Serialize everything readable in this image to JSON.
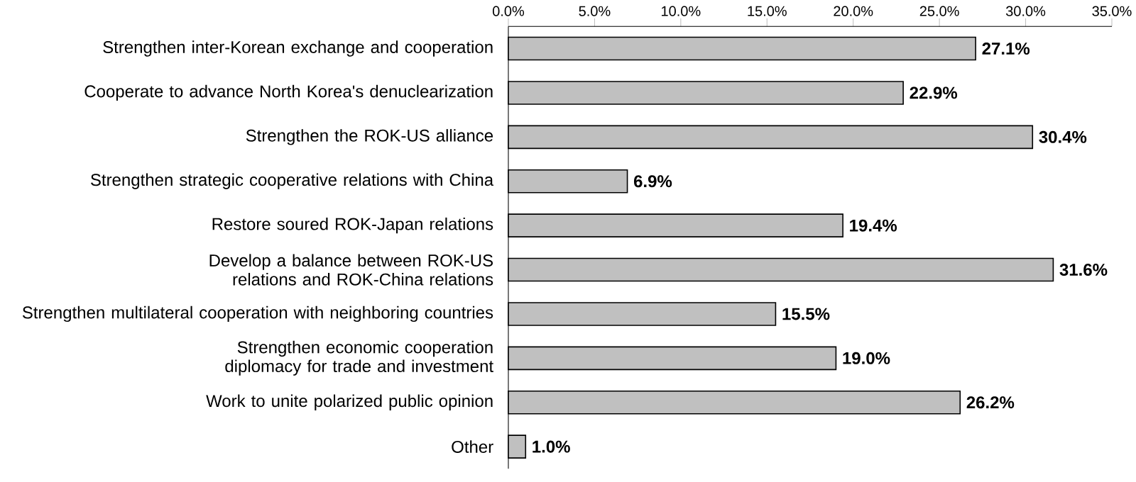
{
  "chart_data": {
    "type": "bar",
    "orientation": "horizontal",
    "categories": [
      "Strengthen inter-Korean exchange and cooperation",
      "Cooperate to advance North Korea's denuclearization",
      "Strengthen the ROK-US alliance",
      "Strengthen strategic cooperative relations with China",
      "Restore soured ROK-Japan relations",
      "Develop a balance between ROK-US relations and ROK-China relations",
      "Strengthen multilateral cooperation with neighboring countries",
      "Strengthen economic cooperation diplomacy for trade and investment",
      "Work to unite polarized public opinion",
      "Other"
    ],
    "values": [
      27.1,
      22.9,
      30.4,
      6.9,
      19.4,
      31.6,
      15.5,
      19.0,
      26.2,
      1.0
    ],
    "value_labels": [
      "27.1%",
      "22.9%",
      "30.4%",
      "6.9%",
      "19.4%",
      "31.6%",
      "15.5%",
      "19.0%",
      "26.2%",
      "1.0%"
    ],
    "color": "#c0c0c0",
    "xlim": [
      0,
      35
    ],
    "xticks": [
      {
        "value": 0,
        "label": "0.0%"
      },
      {
        "value": 5,
        "label": "5.0%"
      },
      {
        "value": 10,
        "label": "10.0%"
      },
      {
        "value": 15,
        "label": "15.0%"
      },
      {
        "value": 20,
        "label": "20.0%"
      },
      {
        "value": 25,
        "label": "25.0%"
      },
      {
        "value": 30,
        "label": "30.0%"
      },
      {
        "value": 35,
        "label": "35.0%"
      }
    ],
    "grid": false
  }
}
